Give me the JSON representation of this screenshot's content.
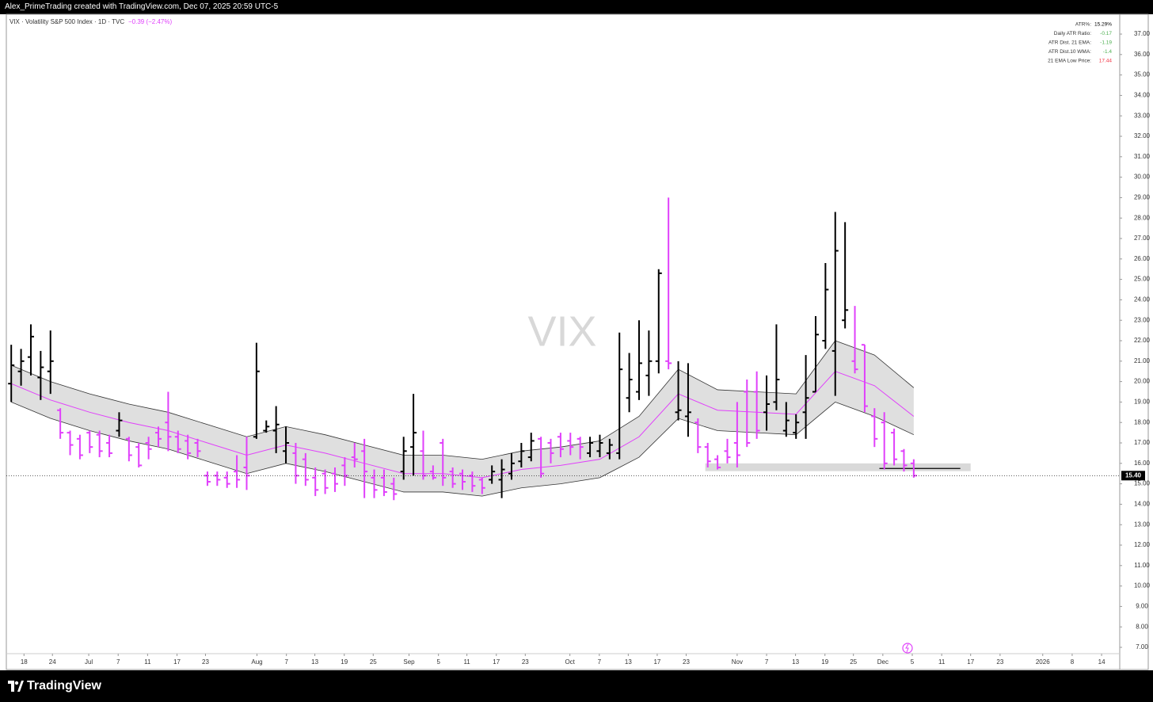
{
  "header": {
    "credit": "Alex_PrimeTrading created with TradingView.com, Dec 07, 2025 20:59 UTC-5",
    "logo": "TradingView"
  },
  "chart_data": {
    "type": "ohlc",
    "symbol": "VIX · Volatility S&P 500 Index · 1D · TVC",
    "change": "−0.39 (−2.47%)",
    "watermark": "VIX",
    "up_color": "#000000",
    "down_color": "#e040fb",
    "ema_color": "#e040fb",
    "band_fill": "#d9d9d9",
    "band_line": "#333333",
    "xlim": [
      -1,
      226
    ],
    "ylim": [
      6.69,
      37.97
    ],
    "xticks": [
      {
        "value": 2.6,
        "label": "18"
      },
      {
        "value": 8.4,
        "label": "24"
      },
      {
        "value": 15.8,
        "label": "Jul"
      },
      {
        "value": 21.8,
        "label": "7"
      },
      {
        "value": 27.8,
        "label": "11"
      },
      {
        "value": 33.8,
        "label": "17"
      },
      {
        "value": 39.6,
        "label": "23"
      },
      {
        "value": 50.1,
        "label": "Aug"
      },
      {
        "value": 56.1,
        "label": "7"
      },
      {
        "value": 61.9,
        "label": "13"
      },
      {
        "value": 67.9,
        "label": "19"
      },
      {
        "value": 73.8,
        "label": "25"
      },
      {
        "value": 81.1,
        "label": "Sep"
      },
      {
        "value": 87.1,
        "label": "5"
      },
      {
        "value": 92.9,
        "label": "11"
      },
      {
        "value": 98.9,
        "label": "17"
      },
      {
        "value": 104.8,
        "label": "23"
      },
      {
        "value": 113.9,
        "label": "Oct"
      },
      {
        "value": 119.9,
        "label": "7"
      },
      {
        "value": 125.8,
        "label": "13"
      },
      {
        "value": 131.7,
        "label": "17"
      },
      {
        "value": 137.6,
        "label": "23"
      },
      {
        "value": 148.0,
        "label": "Nov"
      },
      {
        "value": 154.0,
        "label": "7"
      },
      {
        "value": 159.9,
        "label": "13"
      },
      {
        "value": 165.9,
        "label": "19"
      },
      {
        "value": 171.7,
        "label": "25"
      },
      {
        "value": 177.7,
        "label": "Dec"
      },
      {
        "value": 183.7,
        "label": "5"
      },
      {
        "value": 189.7,
        "label": "11"
      },
      {
        "value": 195.6,
        "label": "17"
      },
      {
        "value": 201.6,
        "label": "23"
      },
      {
        "value": 210.3,
        "label": "2026"
      },
      {
        "value": 216.3,
        "label": "8"
      },
      {
        "value": 222.3,
        "label": "14"
      }
    ],
    "yticks": [
      {
        "value": 7,
        "label": "7.00"
      },
      {
        "value": 8,
        "label": "8.00"
      },
      {
        "value": 9,
        "label": "9.00"
      },
      {
        "value": 10,
        "label": "10.00"
      },
      {
        "value": 11,
        "label": "11.00"
      },
      {
        "value": 12,
        "label": "12.00"
      },
      {
        "value": 13,
        "label": "13.00"
      },
      {
        "value": 14,
        "label": "14.00"
      },
      {
        "value": 15,
        "label": "15.00"
      },
      {
        "value": 16,
        "label": "16.00"
      },
      {
        "value": 17,
        "label": "17.00"
      },
      {
        "value": 18,
        "label": "18.00"
      },
      {
        "value": 19,
        "label": "19.00"
      },
      {
        "value": 20,
        "label": "20.00"
      },
      {
        "value": 21,
        "label": "21.00"
      },
      {
        "value": 22,
        "label": "22.00"
      },
      {
        "value": 23,
        "label": "23.00"
      },
      {
        "value": 24,
        "label": "24.00"
      },
      {
        "value": 25,
        "label": "25.00"
      },
      {
        "value": 26,
        "label": "26.00"
      },
      {
        "value": 27,
        "label": "27.00"
      },
      {
        "value": 28,
        "label": "28.00"
      },
      {
        "value": 29,
        "label": "29.00"
      },
      {
        "value": 30,
        "label": "30.00"
      },
      {
        "value": 31,
        "label": "31.00"
      },
      {
        "value": 32,
        "label": "32.00"
      },
      {
        "value": 33,
        "label": "33.00"
      },
      {
        "value": 34,
        "label": "34.00"
      },
      {
        "value": 35,
        "label": "35.00"
      },
      {
        "value": 36,
        "label": "36.00"
      },
      {
        "value": 37,
        "label": "37.00"
      }
    ],
    "x": [
      0,
      2,
      4,
      6,
      8,
      10,
      12,
      14,
      16,
      18,
      20,
      22,
      24,
      26,
      28,
      30,
      32,
      34,
      36,
      38,
      40,
      42,
      44,
      46,
      48,
      50,
      52,
      54,
      56,
      58,
      60,
      62,
      64,
      66,
      68,
      70,
      72,
      74,
      76,
      78,
      80,
      82,
      84,
      86,
      88,
      90,
      92,
      94,
      96,
      98,
      100,
      102,
      104,
      106,
      108,
      110,
      112,
      114,
      116,
      118,
      120,
      122,
      124,
      126,
      128,
      130,
      132,
      134,
      136,
      138,
      140,
      142,
      144,
      146,
      148,
      150,
      152,
      154,
      156,
      158,
      160,
      162,
      164,
      166,
      168,
      170,
      172,
      174,
      176,
      178,
      180,
      182,
      184
    ],
    "open": [
      19.9,
      20.5,
      21.2,
      20.2,
      20.5,
      18.6,
      17.5,
      17.2,
      17.5,
      17.4,
      17.0,
      17.6,
      17.2,
      16.8,
      17.0,
      17.5,
      18.0,
      17.3,
      17.1,
      17.0,
      15.4,
      15.4,
      15.3,
      15.6,
      15.8,
      17.3,
      17.6,
      17.6,
      16.6,
      16.5,
      16.2,
      15.3,
      15.5,
      15.5,
      15.9,
      16.3,
      16.6,
      15.3,
      15.3,
      15.0,
      15.6,
      16.8,
      16.6,
      15.6,
      17.0,
      15.6,
      15.5,
      15.4,
      15.2,
      15.2,
      15.2,
      15.5,
      16.1,
      16.3,
      17.2,
      17.0,
      17.3,
      17.1,
      17.2,
      16.5,
      16.6,
      16.5,
      16.5,
      19.2,
      19.5,
      20.3,
      21.0,
      21.0,
      18.5,
      18.3,
      18.0,
      16.8,
      16.2,
      16.6,
      17.0,
      19.5,
      19.5,
      18.5,
      19.0,
      17.6,
      17.5,
      18.5,
      19.5,
      22.0,
      21.5,
      23.0,
      21.0,
      21.8,
      18.3,
      18.0,
      17.5,
      16.6,
      16.0
    ],
    "high": [
      21.8,
      21.6,
      22.8,
      21.5,
      22.5,
      18.7,
      17.6,
      17.4,
      17.6,
      17.6,
      17.4,
      18.5,
      17.3,
      17.0,
      17.3,
      17.8,
      19.5,
      17.6,
      17.4,
      17.2,
      15.6,
      15.6,
      15.6,
      16.4,
      17.3,
      21.9,
      18.1,
      18.8,
      17.8,
      17.0,
      16.5,
      15.8,
      15.7,
      15.8,
      16.3,
      17.0,
      17.2,
      15.7,
      15.7,
      15.3,
      17.3,
      19.4,
      17.6,
      15.9,
      17.2,
      15.8,
      15.7,
      15.6,
      15.3,
      15.9,
      16.2,
      16.5,
      17.0,
      17.5,
      17.3,
      17.2,
      17.5,
      17.5,
      17.3,
      17.3,
      17.4,
      17.2,
      22.4,
      21.4,
      23.0,
      22.5,
      25.5,
      29.0,
      21.0,
      20.9,
      18.2,
      17.0,
      16.4,
      17.2,
      19.0,
      20.1,
      20.5,
      20.3,
      22.8,
      19.0,
      18.4,
      21.3,
      23.2,
      25.8,
      28.3,
      27.8,
      23.7,
      21.8,
      18.7,
      18.5,
      17.7,
      16.7,
      16.2
    ],
    "low": [
      19.0,
      19.8,
      20.3,
      19.1,
      19.4,
      17.2,
      16.4,
      16.2,
      16.5,
      16.3,
      16.3,
      17.3,
      16.1,
      15.8,
      16.2,
      16.8,
      16.6,
      16.5,
      16.2,
      16.3,
      14.9,
      14.9,
      14.8,
      14.8,
      14.7,
      17.2,
      17.5,
      16.5,
      16.0,
      15.0,
      14.9,
      14.4,
      14.5,
      14.6,
      14.9,
      15.8,
      14.3,
      14.3,
      14.4,
      14.2,
      15.2,
      15.4,
      15.2,
      15.2,
      14.9,
      14.8,
      14.7,
      14.6,
      14.5,
      15.0,
      14.3,
      15.2,
      15.8,
      16.1,
      15.3,
      16.0,
      16.3,
      16.4,
      16.2,
      16.3,
      16.3,
      16.2,
      16.2,
      18.5,
      19.1,
      19.3,
      20.4,
      20.6,
      18.1,
      17.3,
      16.5,
      15.8,
      15.7,
      16.0,
      15.8,
      16.8,
      17.2,
      17.6,
      18.6,
      17.3,
      17.2,
      17.2,
      19.5,
      21.6,
      19.3,
      22.6,
      20.4,
      18.5,
      16.8,
      15.7,
      15.9,
      15.6,
      15.3
    ],
    "close": [
      20.8,
      21.0,
      22.2,
      20.7,
      21.0,
      17.5,
      16.9,
      16.4,
      16.8,
      16.6,
      16.5,
      18.1,
      16.4,
      15.9,
      16.7,
      17.2,
      17.3,
      16.7,
      16.5,
      16.6,
      15.1,
      15.2,
      15.0,
      15.2,
      15.4,
      20.5,
      17.8,
      17.9,
      17.0,
      15.4,
      15.2,
      14.7,
      14.8,
      15.0,
      15.4,
      16.2,
      15.6,
      14.7,
      14.6,
      14.5,
      16.6,
      17.5,
      15.4,
      15.3,
      15.3,
      15.0,
      15.1,
      14.9,
      14.8,
      15.6,
      15.7,
      16.0,
      16.6,
      17.1,
      15.5,
      16.5,
      16.7,
      16.8,
      16.8,
      17.0,
      17.0,
      16.9,
      20.6,
      20.1,
      20.9,
      21.0,
      25.3,
      20.9,
      18.6,
      18.5,
      16.8,
      16.1,
      15.8,
      16.3,
      16.4,
      17.0,
      17.6,
      18.9,
      20.1,
      18.1,
      18.0,
      19.2,
      22.3,
      24.5,
      26.4,
      23.5,
      20.6,
      18.8,
      17.2,
      16.0,
      16.2,
      15.9,
      15.4
    ],
    "band_x": [
      0,
      8,
      16,
      24,
      32,
      40,
      48,
      56,
      64,
      72,
      80,
      88,
      96,
      104,
      112,
      120,
      128,
      136,
      144,
      152,
      160,
      168,
      176,
      184
    ],
    "ema": [
      19.9,
      19.1,
      18.5,
      18.0,
      17.6,
      17.0,
      16.4,
      16.9,
      16.5,
      16.0,
      15.5,
      15.5,
      15.3,
      15.7,
      15.9,
      16.2,
      17.3,
      19.4,
      18.6,
      18.5,
      18.4,
      20.5,
      19.8,
      18.3
    ],
    "band_upper": [
      20.8,
      20.0,
      19.4,
      18.9,
      18.5,
      17.9,
      17.3,
      17.8,
      17.4,
      16.9,
      16.4,
      16.4,
      16.2,
      16.6,
      16.8,
      17.1,
      18.3,
      20.6,
      19.6,
      19.5,
      19.4,
      22.0,
      21.3,
      19.7
    ],
    "band_lower": [
      19.0,
      18.2,
      17.6,
      17.1,
      16.7,
      16.1,
      15.5,
      16.0,
      15.6,
      15.1,
      14.6,
      14.6,
      14.4,
      14.8,
      15.0,
      15.3,
      16.3,
      18.2,
      17.6,
      17.5,
      17.4,
      19.0,
      18.3,
      17.4
    ],
    "zone": {
      "x": [
        141.5,
        195.6
      ],
      "y": [
        15.62,
        16.0
      ]
    },
    "level_line": {
      "x": [
        177,
        193.5
      ],
      "y": 15.75
    },
    "last_price": {
      "value": 15.4,
      "label": "15.40"
    },
    "info": [
      {
        "label": "ATR%:",
        "value": "15.29%",
        "color": "#000000"
      },
      {
        "label": "Daily ATR Ratio:",
        "value": "-0.17",
        "color": "#4caf50"
      },
      {
        "label": "ATR Dist. 21 EMA:",
        "value": "-1.19",
        "color": "#4caf50"
      },
      {
        "label": "ATR Dist.10 WMA:",
        "value": "-1.4",
        "color": "#4caf50"
      },
      {
        "label": "21 EMA Low Price:",
        "value": "17.44",
        "color": "#f23645"
      }
    ]
  }
}
